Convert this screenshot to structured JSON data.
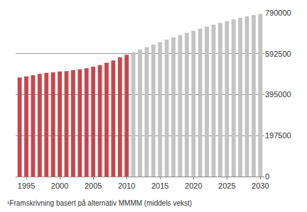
{
  "chart_data": {
    "type": "bar",
    "note": "¹Framskrivning basert på alternativ MMMM (middels vekst)",
    "x": [
      1994,
      1995,
      1996,
      1997,
      1998,
      1999,
      2000,
      2001,
      2002,
      2003,
      2004,
      2005,
      2006,
      2007,
      2008,
      2009,
      2010,
      2011,
      2012,
      2013,
      2014,
      2015,
      2016,
      2017,
      2018,
      2019,
      2020,
      2021,
      2022,
      2023,
      2024,
      2025,
      2026,
      2027,
      2028,
      2029,
      2030
    ],
    "values": [
      478000,
      483000,
      489000,
      495000,
      500000,
      503000,
      507000,
      509000,
      513000,
      517000,
      522000,
      530000,
      538000,
      549000,
      560000,
      575000,
      587000,
      599000,
      612000,
      624000,
      636000,
      648000,
      660000,
      671000,
      682000,
      693000,
      703000,
      713000,
      723000,
      732000,
      741000,
      750000,
      758000,
      766000,
      773000,
      779000,
      785000
    ],
    "colors": [
      "#c8464b",
      "#c8464b",
      "#c8464b",
      "#c8464b",
      "#c8464b",
      "#c8464b",
      "#c8464b",
      "#c8464b",
      "#c8464b",
      "#c8464b",
      "#c8464b",
      "#c8464b",
      "#c8464b",
      "#c8464b",
      "#c8464b",
      "#c8464b",
      "#c8464b",
      "#c3c3c3",
      "#c3c3c3",
      "#c3c3c3",
      "#c3c3c3",
      "#c3c3c3",
      "#c3c3c3",
      "#c3c3c3",
      "#c3c3c3",
      "#c3c3c3",
      "#c3c3c3",
      "#c3c3c3",
      "#c3c3c3",
      "#c3c3c3",
      "#c3c3c3",
      "#c3c3c3",
      "#c3c3c3",
      "#c3c3c3",
      "#c3c3c3",
      "#c3c3c3",
      "#c3c3c3"
    ],
    "xlim": [
      1993.4,
      2030.6
    ],
    "xticks": [
      1995,
      2000,
      2005,
      2010,
      2015,
      2020,
      2025,
      2030
    ],
    "ylim": [
      0,
      790000
    ],
    "yticks": [
      0,
      197500,
      395000,
      592500,
      790000
    ],
    "grid": true
  }
}
